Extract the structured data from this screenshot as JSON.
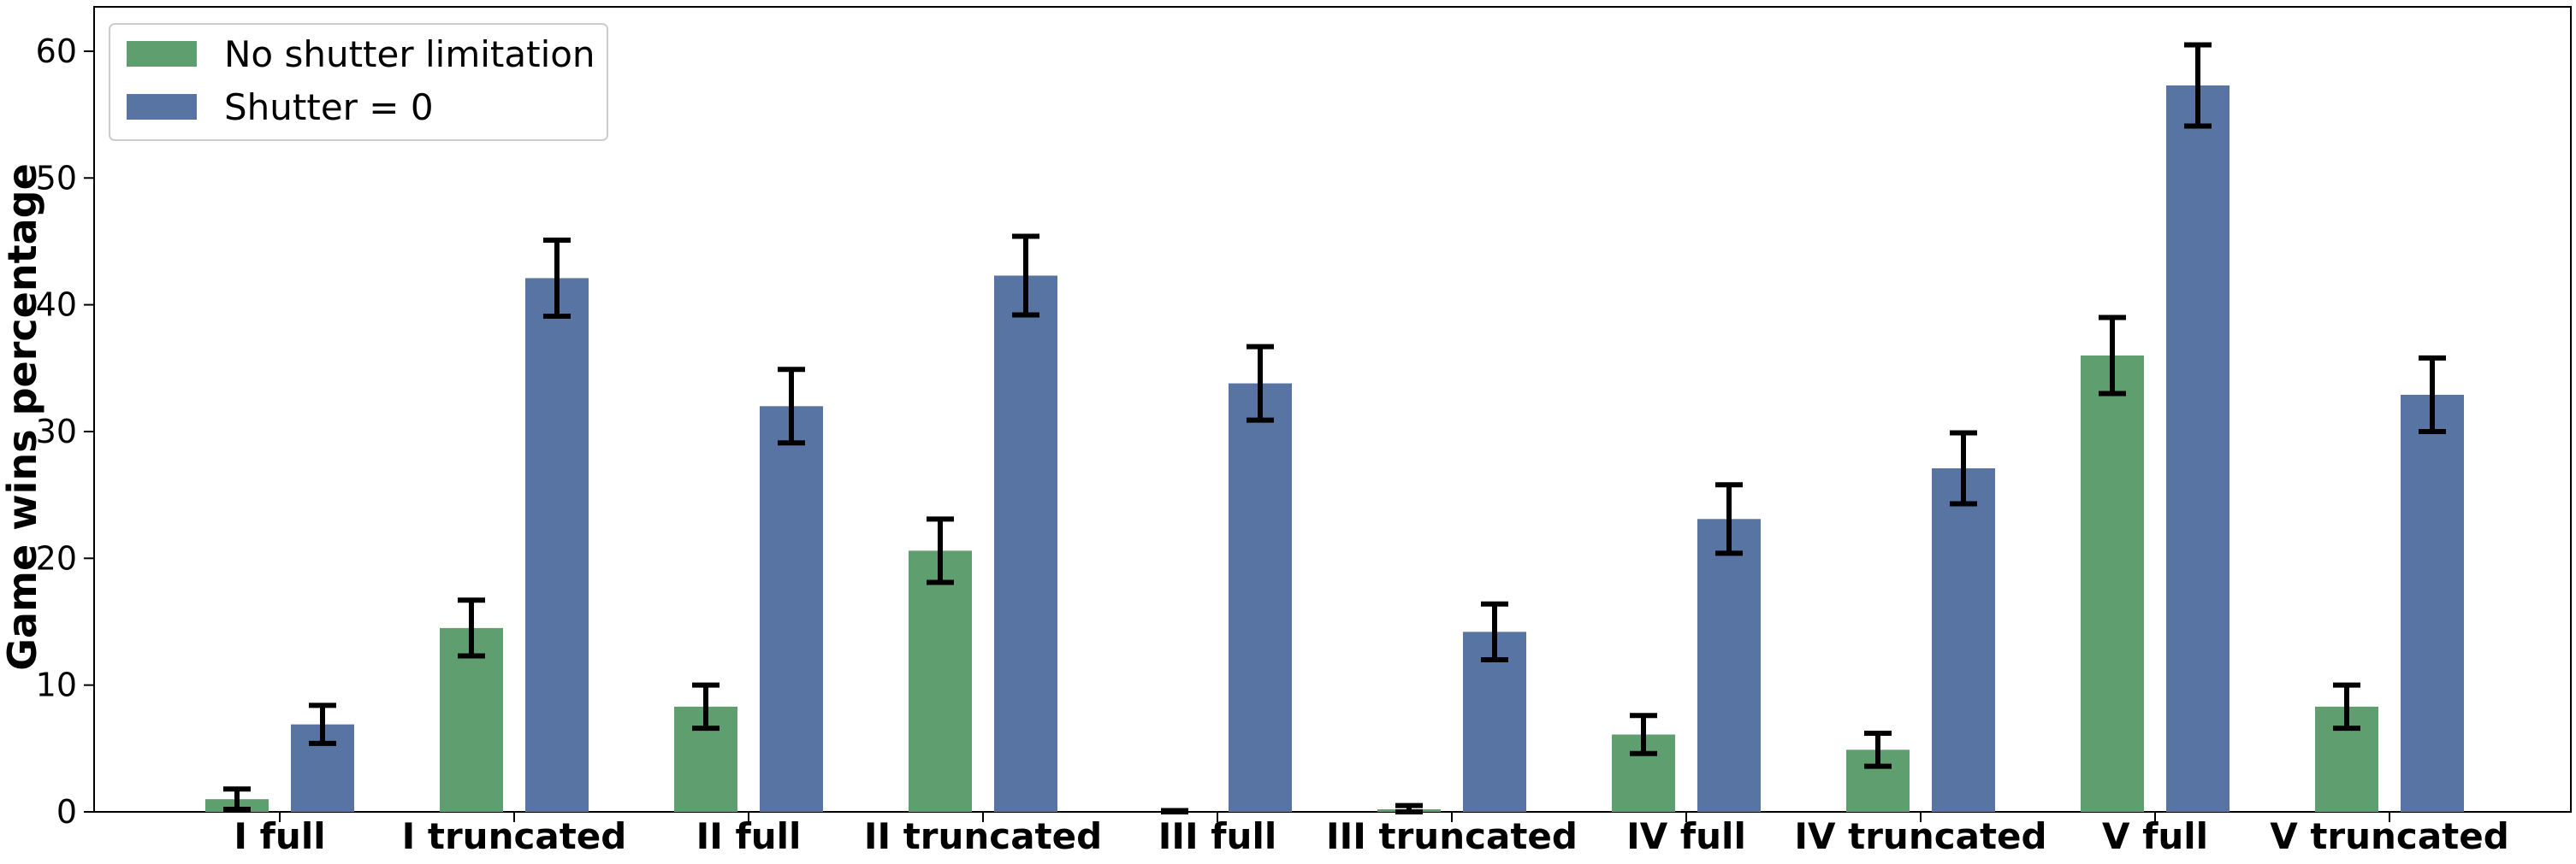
{
  "chart_data": {
    "type": "bar",
    "ylabel": "Game wins percentage",
    "xlabel": "",
    "ylim": [
      0,
      63.5
    ],
    "yticks": [
      0,
      10,
      20,
      30,
      40,
      50,
      60
    ],
    "grid": false,
    "legend_position": "top-left",
    "categories": [
      "I full",
      "I truncated",
      "II full",
      "II truncated",
      "III full",
      "III truncated",
      "IV full",
      "IV truncated",
      "V full",
      "V truncated"
    ],
    "series": [
      {
        "name": "No shutter limitation",
        "color": "#5f9e6e",
        "values": [
          1.0,
          14.5,
          8.3,
          20.6,
          0.0,
          0.2,
          6.1,
          4.9,
          36.0,
          8.3
        ],
        "error": [
          0.8,
          2.2,
          1.7,
          2.5,
          0.1,
          0.3,
          1.5,
          1.3,
          3.0,
          1.7
        ]
      },
      {
        "name": "Shutter = 0",
        "color": "#5874a2",
        "values": [
          6.9,
          42.1,
          32.0,
          42.3,
          33.8,
          14.2,
          23.1,
          27.1,
          57.3,
          32.9
        ],
        "error": [
          1.5,
          3.0,
          2.9,
          3.1,
          2.9,
          2.2,
          2.7,
          2.8,
          3.2,
          2.9
        ]
      }
    ]
  }
}
